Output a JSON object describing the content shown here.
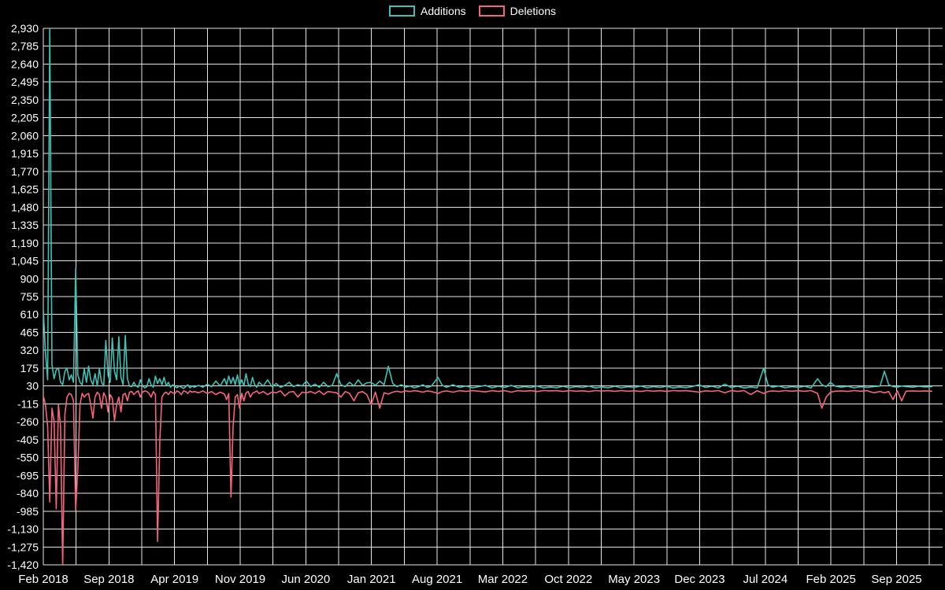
{
  "colors": {
    "background": "#000000",
    "grid": "#e6e6e6",
    "text": "#ffffff",
    "additions": "#3fc2b4",
    "deletions": "#f4647d"
  },
  "legend": {
    "items": [
      {
        "label": "Additions",
        "color": "#3fc2b4"
      },
      {
        "label": "Deletions",
        "color": "#f4647d"
      }
    ]
  },
  "chart_data": {
    "type": "line",
    "title": "",
    "xlabel": "",
    "ylabel": "",
    "x_unit": "weeks since Feb 2018",
    "legend_position": "top-center",
    "grid": true,
    "y_range": [
      -1420,
      2930
    ],
    "y_tick_step": 145,
    "x_labels": [
      {
        "label": "Feb 2018",
        "week": 0
      },
      {
        "label": "Sep 2018",
        "week": 30.43
      },
      {
        "label": "Apr 2019",
        "week": 60.87
      },
      {
        "label": "Nov 2019",
        "week": 91.3
      },
      {
        "label": "Jun 2020",
        "week": 121.74
      },
      {
        "label": "Jan 2021",
        "week": 152.17
      },
      {
        "label": "Aug 2021",
        "week": 182.61
      },
      {
        "label": "Mar 2022",
        "week": 213.04
      },
      {
        "label": "Oct 2022",
        "week": 243.48
      },
      {
        "label": "May 2023",
        "week": 273.91
      },
      {
        "label": "Dec 2023",
        "week": 304.35
      },
      {
        "label": "Jul 2024",
        "week": 334.78
      },
      {
        "label": "Feb 2025",
        "week": 365.22
      },
      {
        "label": "Sep 2025",
        "week": 395.65
      }
    ],
    "y_ticks": [
      {
        "label": "2,930",
        "value": 2930
      },
      {
        "label": "2,785",
        "value": 2785
      },
      {
        "label": "2,640",
        "value": 2640
      },
      {
        "label": "2,495",
        "value": 2495
      },
      {
        "label": "2,350",
        "value": 2350
      },
      {
        "label": "2,205",
        "value": 2205
      },
      {
        "label": "2,060",
        "value": 2060
      },
      {
        "label": "1,915",
        "value": 1915
      },
      {
        "label": "1,770",
        "value": 1770
      },
      {
        "label": "1,625",
        "value": 1625
      },
      {
        "label": "1,480",
        "value": 1480
      },
      {
        "label": "1,335",
        "value": 1335
      },
      {
        "label": "1,190",
        "value": 1190
      },
      {
        "label": "1,045",
        "value": 1045
      },
      {
        "label": "900",
        "value": 900
      },
      {
        "label": "755",
        "value": 755
      },
      {
        "label": "610",
        "value": 610
      },
      {
        "label": "465",
        "value": 465
      },
      {
        "label": "320",
        "value": 320
      },
      {
        "label": "175",
        "value": 175
      },
      {
        "label": "30",
        "value": 30
      },
      {
        "label": "-115",
        "value": -115
      },
      {
        "label": "-260",
        "value": -260
      },
      {
        "label": "-405",
        "value": -405
      },
      {
        "label": "-550",
        "value": -550
      },
      {
        "label": "-695",
        "value": -695
      },
      {
        "label": "-840",
        "value": -840
      },
      {
        "label": "-985",
        "value": -985
      },
      {
        "label": "-1,130",
        "value": -1130
      },
      {
        "label": "-1,275",
        "value": -1275
      },
      {
        "label": "-1,420",
        "value": -1420
      }
    ],
    "series": [
      {
        "name": "Additions",
        "color": "#3fc2b4"
      },
      {
        "name": "Deletions",
        "color": "#f4647d"
      }
    ],
    "points_format": [
      "week",
      "additions",
      "deletions"
    ],
    "points": [
      [
        0,
        650,
        -50
      ],
      [
        1,
        300,
        -120
      ],
      [
        2,
        80,
        -300
      ],
      [
        3,
        2935,
        -910
      ],
      [
        4,
        200,
        -150
      ],
      [
        5,
        90,
        -260
      ],
      [
        6,
        160,
        -965
      ],
      [
        7,
        175,
        -120
      ],
      [
        8,
        60,
        -300
      ],
      [
        9,
        40,
        -1425
      ],
      [
        10,
        150,
        -200
      ],
      [
        11,
        175,
        -60
      ],
      [
        12,
        80,
        -30
      ],
      [
        13,
        120,
        -40
      ],
      [
        14,
        60,
        -90
      ],
      [
        15,
        980,
        -975
      ],
      [
        16,
        120,
        -640
      ],
      [
        17,
        60,
        -120
      ],
      [
        18,
        40,
        -30
      ],
      [
        19,
        170,
        -60
      ],
      [
        20,
        60,
        -40
      ],
      [
        21,
        190,
        -30
      ],
      [
        22,
        80,
        -120
      ],
      [
        23,
        40,
        -230
      ],
      [
        24,
        130,
        -60
      ],
      [
        25,
        30,
        -20
      ],
      [
        26,
        170,
        -40
      ],
      [
        27,
        60,
        -150
      ],
      [
        28,
        30,
        -25
      ],
      [
        29,
        400,
        -60
      ],
      [
        30,
        120,
        -180
      ],
      [
        31,
        60,
        -40
      ],
      [
        32,
        420,
        -70
      ],
      [
        33,
        150,
        -250
      ],
      [
        34,
        80,
        -120
      ],
      [
        35,
        430,
        -60
      ],
      [
        36,
        100,
        -180
      ],
      [
        37,
        40,
        -40
      ],
      [
        38,
        440,
        -30
      ],
      [
        39,
        90,
        -90
      ],
      [
        40,
        30,
        -20
      ],
      [
        41,
        25,
        -15
      ],
      [
        42,
        60,
        -40
      ],
      [
        43,
        30,
        -20
      ],
      [
        44,
        20,
        -10
      ],
      [
        45,
        80,
        -60
      ],
      [
        46,
        30,
        -20
      ],
      [
        47,
        15,
        -10
      ],
      [
        48,
        25,
        -15
      ],
      [
        49,
        90,
        -30
      ],
      [
        50,
        40,
        -60
      ],
      [
        51,
        20,
        -15
      ],
      [
        52,
        110,
        -40
      ],
      [
        53,
        50,
        -1230
      ],
      [
        54,
        90,
        -420
      ],
      [
        55,
        40,
        -60
      ],
      [
        56,
        100,
        -30
      ],
      [
        57,
        30,
        -20
      ],
      [
        58,
        60,
        -40
      ],
      [
        59,
        20,
        -15
      ],
      [
        60,
        40,
        -25
      ],
      [
        61,
        25,
        -30
      ],
      [
        62,
        15,
        -10
      ],
      [
        63,
        30,
        -20
      ],
      [
        64,
        20,
        -40
      ],
      [
        65,
        10,
        -10
      ],
      [
        66,
        25,
        -15
      ],
      [
        67,
        40,
        -30
      ],
      [
        68,
        15,
        -10
      ],
      [
        69,
        30,
        -20
      ],
      [
        70,
        20,
        -15
      ],
      [
        72,
        35,
        -25
      ],
      [
        74,
        20,
        -10
      ],
      [
        76,
        45,
        -30
      ],
      [
        78,
        25,
        -15
      ],
      [
        80,
        70,
        -40
      ],
      [
        82,
        30,
        -20
      ],
      [
        84,
        90,
        -35
      ],
      [
        85,
        40,
        -80
      ],
      [
        86,
        110,
        -30
      ],
      [
        87,
        50,
        -870
      ],
      [
        88,
        100,
        -300
      ],
      [
        89,
        40,
        -60
      ],
      [
        90,
        120,
        -40
      ],
      [
        91,
        35,
        -150
      ],
      [
        92,
        80,
        -30
      ],
      [
        93,
        30,
        -90
      ],
      [
        94,
        130,
        -25
      ],
      [
        95,
        45,
        -15
      ],
      [
        96,
        25,
        -60
      ],
      [
        97,
        100,
        -30
      ],
      [
        98,
        40,
        -20
      ],
      [
        99,
        20,
        -10
      ],
      [
        100,
        60,
        -30
      ],
      [
        102,
        30,
        -15
      ],
      [
        104,
        80,
        -40
      ],
      [
        106,
        25,
        -20
      ],
      [
        108,
        50,
        -25
      ],
      [
        110,
        20,
        -10
      ],
      [
        112,
        35,
        -50
      ],
      [
        114,
        60,
        -20
      ],
      [
        116,
        25,
        -15
      ],
      [
        118,
        40,
        -60
      ],
      [
        120,
        30,
        -20
      ],
      [
        122,
        70,
        -25
      ],
      [
        124,
        25,
        -15
      ],
      [
        126,
        45,
        -30
      ],
      [
        128,
        20,
        -10
      ],
      [
        130,
        60,
        -40
      ],
      [
        132,
        25,
        -15
      ],
      [
        134,
        35,
        -20
      ],
      [
        136,
        130,
        -25
      ],
      [
        138,
        40,
        -60
      ],
      [
        140,
        25,
        -15
      ],
      [
        142,
        60,
        -30
      ],
      [
        144,
        30,
        -90
      ],
      [
        146,
        80,
        -25
      ],
      [
        148,
        35,
        -15
      ],
      [
        150,
        55,
        -40
      ],
      [
        152,
        60,
        -120
      ],
      [
        154,
        35,
        -20
      ],
      [
        156,
        70,
        -150
      ],
      [
        158,
        40,
        -25
      ],
      [
        160,
        190,
        -35
      ],
      [
        162,
        50,
        -20
      ],
      [
        164,
        25,
        -12
      ],
      [
        166,
        40,
        -20
      ],
      [
        168,
        20,
        -10
      ],
      [
        170,
        30,
        -15
      ],
      [
        172,
        15,
        -8
      ],
      [
        174,
        25,
        -12
      ],
      [
        176,
        40,
        -20
      ],
      [
        178,
        18,
        -10
      ],
      [
        180,
        30,
        -15
      ],
      [
        183,
        100,
        -30
      ],
      [
        185,
        35,
        -15
      ],
      [
        187,
        20,
        -10
      ],
      [
        190,
        40,
        -20
      ],
      [
        193,
        18,
        -8
      ],
      [
        196,
        30,
        -14
      ],
      [
        199,
        15,
        -8
      ],
      [
        202,
        25,
        -12
      ],
      [
        205,
        35,
        -18
      ],
      [
        208,
        15,
        -8
      ],
      [
        211,
        28,
        -14
      ],
      [
        214,
        18,
        -8
      ],
      [
        217,
        35,
        -20
      ],
      [
        220,
        15,
        -8
      ],
      [
        223,
        25,
        -12
      ],
      [
        226,
        18,
        -8
      ],
      [
        229,
        30,
        -15
      ],
      [
        232,
        14,
        -7
      ],
      [
        235,
        22,
        -10
      ],
      [
        238,
        16,
        -8
      ],
      [
        241,
        28,
        -14
      ],
      [
        244,
        15,
        -7
      ],
      [
        247,
        25,
        -12
      ],
      [
        250,
        18,
        -9
      ],
      [
        253,
        30,
        -15
      ],
      [
        256,
        14,
        -7
      ],
      [
        259,
        22,
        -11
      ],
      [
        262,
        16,
        -8
      ],
      [
        265,
        28,
        -13
      ],
      [
        268,
        15,
        -7
      ],
      [
        271,
        24,
        -12
      ],
      [
        274,
        18,
        -9
      ],
      [
        277,
        30,
        -14
      ],
      [
        280,
        15,
        -7
      ],
      [
        283,
        25,
        -12
      ],
      [
        286,
        18,
        -8
      ],
      [
        289,
        28,
        -14
      ],
      [
        292,
        14,
        -7
      ],
      [
        295,
        22,
        -10
      ],
      [
        298,
        16,
        -8
      ],
      [
        301,
        26,
        -13
      ],
      [
        304,
        40,
        -20
      ],
      [
        307,
        18,
        -9
      ],
      [
        310,
        28,
        -13
      ],
      [
        313,
        15,
        -7
      ],
      [
        316,
        45,
        -25
      ],
      [
        319,
        18,
        -8
      ],
      [
        322,
        28,
        -14
      ],
      [
        325,
        14,
        -7
      ],
      [
        328,
        22,
        -40
      ],
      [
        331,
        16,
        -8
      ],
      [
        334,
        175,
        -30
      ],
      [
        336,
        40,
        -15
      ],
      [
        338,
        20,
        -10
      ],
      [
        341,
        30,
        -14
      ],
      [
        344,
        15,
        -7
      ],
      [
        347,
        25,
        -12
      ],
      [
        350,
        18,
        -8
      ],
      [
        353,
        28,
        -13
      ],
      [
        356,
        14,
        -7
      ],
      [
        359,
        90,
        -30
      ],
      [
        361,
        40,
        -150
      ],
      [
        363,
        25,
        -60
      ],
      [
        365,
        60,
        -20
      ],
      [
        367,
        30,
        -12
      ],
      [
        370,
        20,
        -10
      ],
      [
        373,
        28,
        -14
      ],
      [
        376,
        15,
        -7
      ],
      [
        379,
        24,
        -12
      ],
      [
        382,
        18,
        -8
      ],
      [
        385,
        25,
        -25
      ],
      [
        388,
        30,
        -14
      ],
      [
        390,
        150,
        -25
      ],
      [
        392,
        40,
        -15
      ],
      [
        394,
        25,
        -80
      ],
      [
        396,
        20,
        -10
      ],
      [
        398,
        30,
        -90
      ],
      [
        400,
        25,
        -12
      ],
      [
        403,
        20,
        -10
      ],
      [
        406,
        28,
        -12
      ],
      [
        409,
        22,
        -10
      ],
      [
        412,
        25,
        -12
      ]
    ]
  }
}
